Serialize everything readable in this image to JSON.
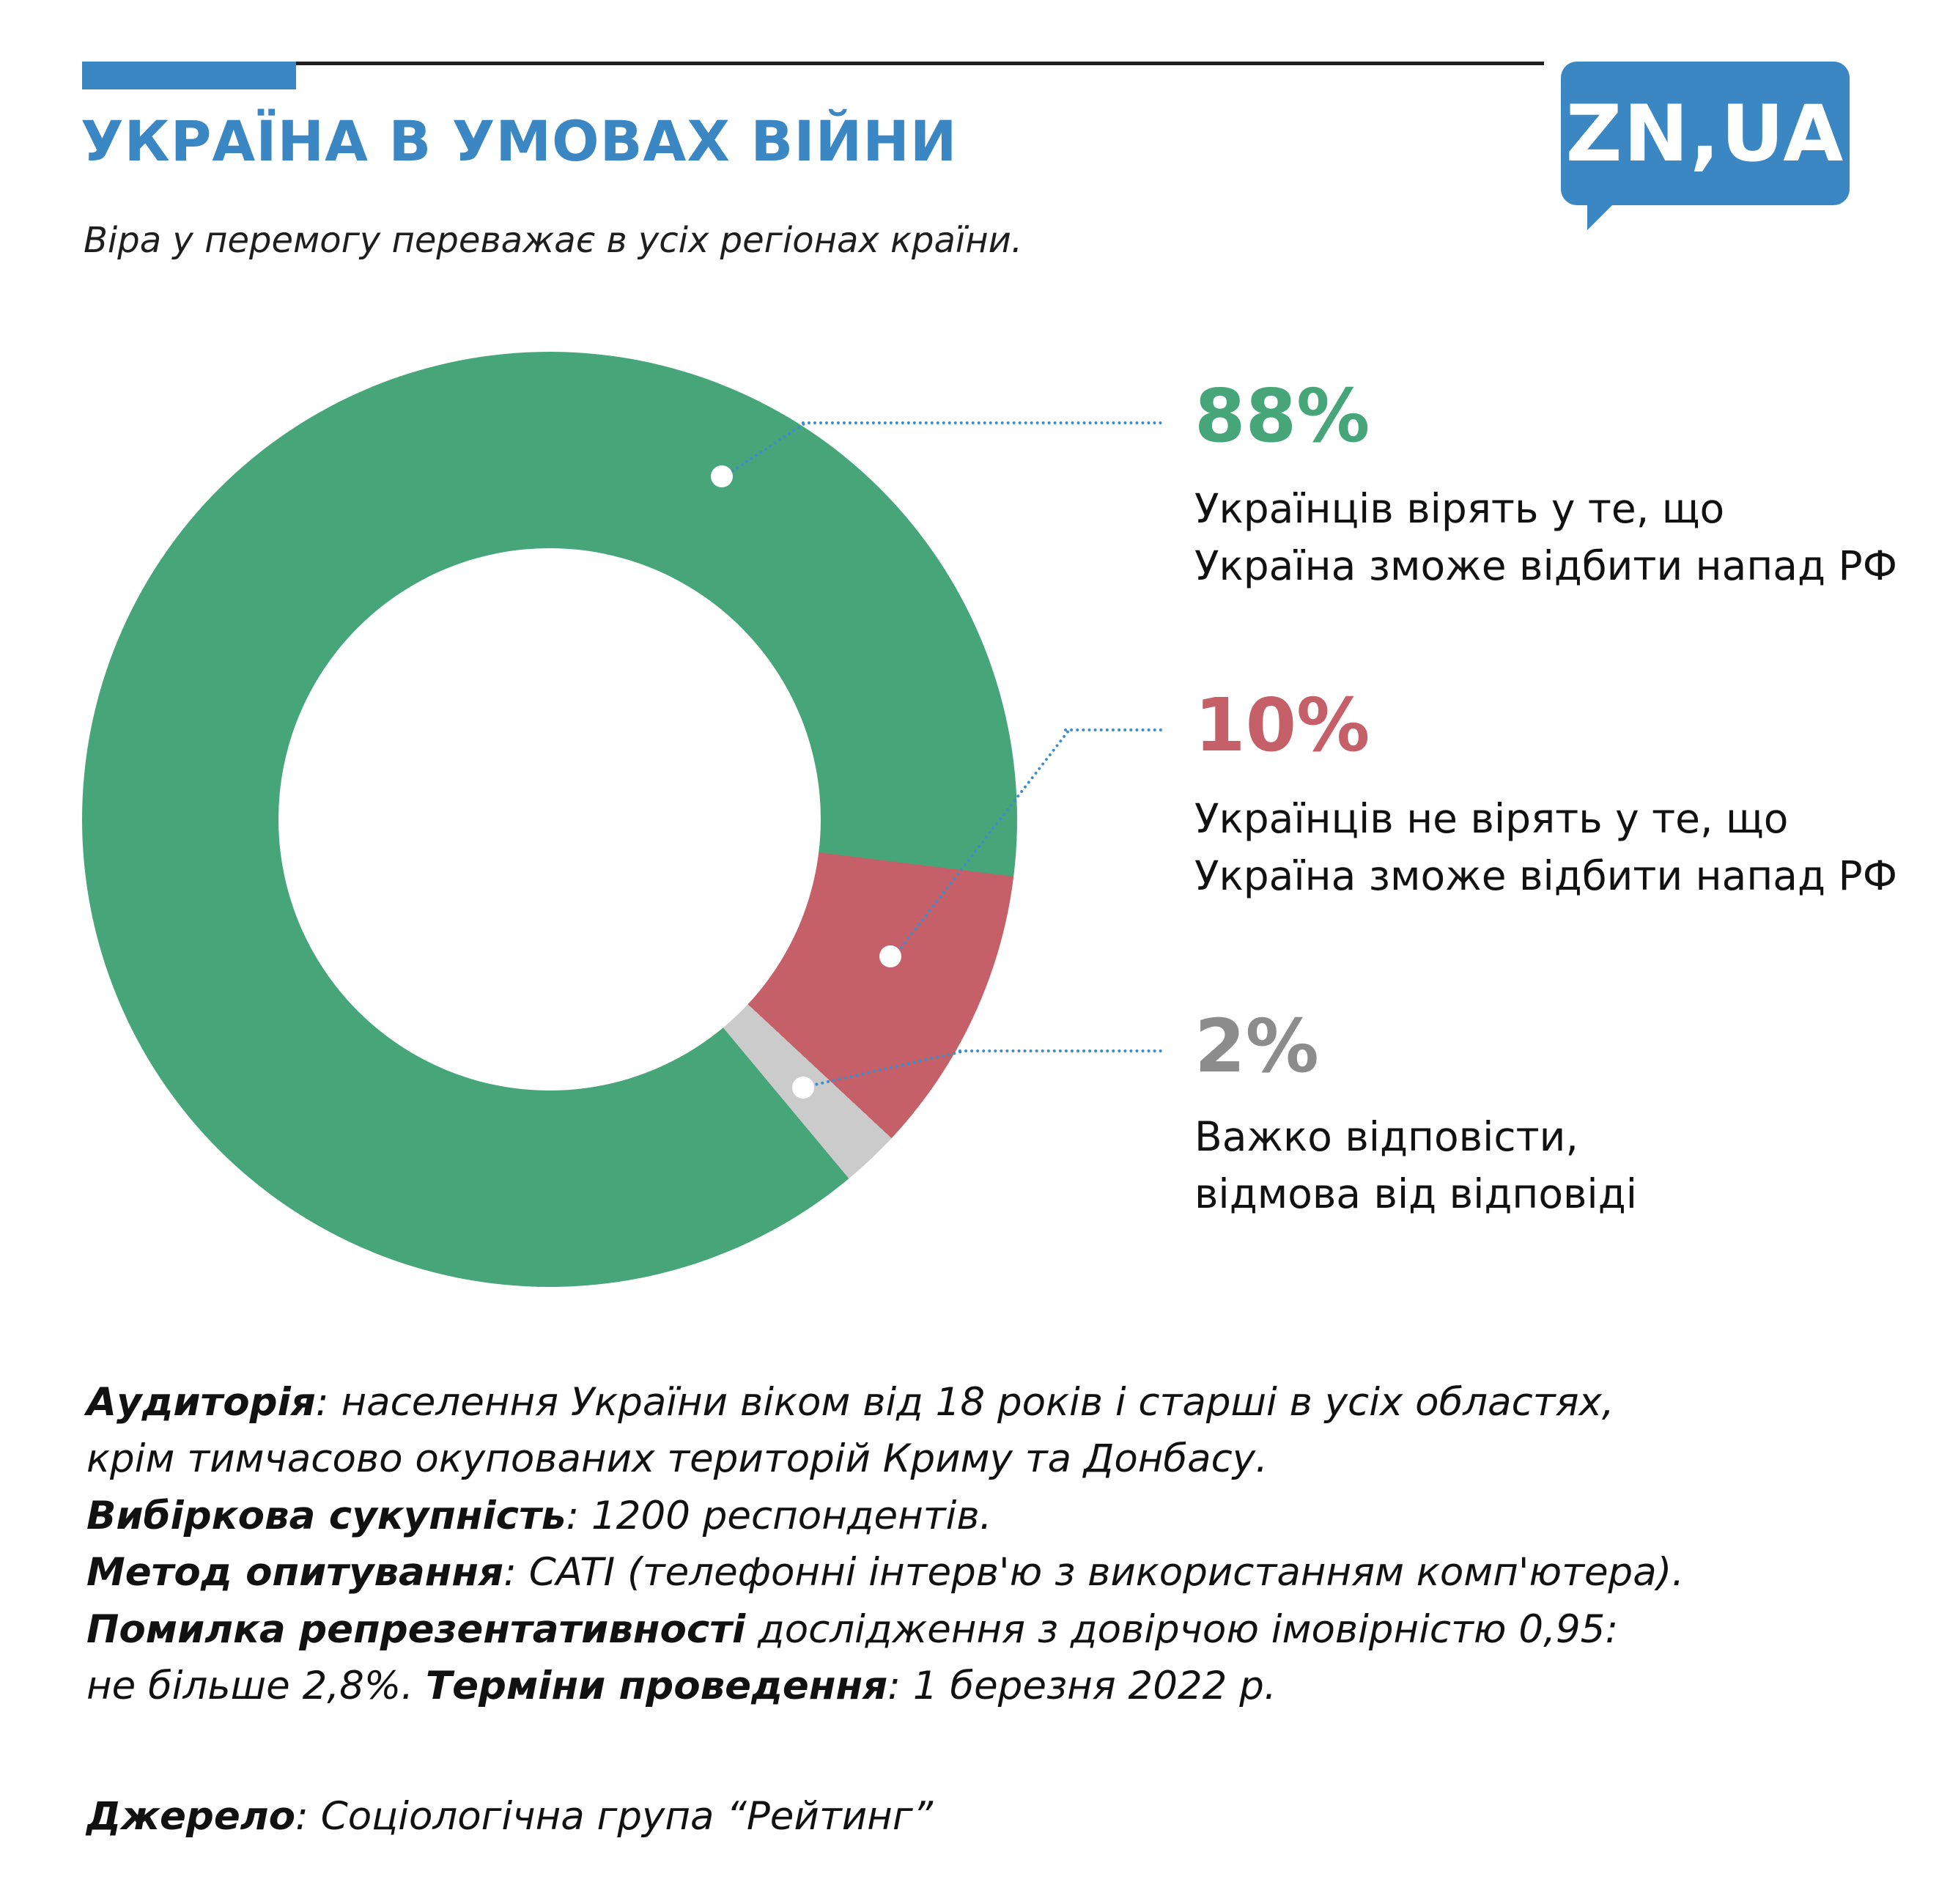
{
  "header": {
    "title": "УКРАЇНА В УМОВАХ ВІЙНИ",
    "subtitle": "Віра у перемогу переважає в усіх регіонах країни.",
    "logo": "ZN,UA"
  },
  "colors": {
    "accent_blue": "#3b87c3",
    "leader_blue": "#3f8dc9",
    "green": "#46a679",
    "red": "#c55f68",
    "gray_slice": "#cbcbcb",
    "gray_text": "#8c8c8c",
    "text_dark": "#1a1a1a"
  },
  "chart_data": {
    "type": "pie",
    "donut": true,
    "title": "УКРАЇНА В УМОВАХ ВІЙНИ",
    "subtitle": "Віра у перемогу переважає в усіх регіонах країни.",
    "unit": "%",
    "start_angle_deg": 140.2,
    "legend_position": "right",
    "slices": [
      {
        "label": "Українців вірять у те, що Україна зможе відбити напад РФ",
        "value": 88,
        "color": "#46a679"
      },
      {
        "label": "Українців не вірять у те, що Україна зможе відбити напад РФ",
        "value": 10,
        "color": "#c55f68"
      },
      {
        "label": "Важко відповісти, відмова від відповіді",
        "value": 2,
        "color": "#cbcbcb"
      }
    ]
  },
  "callouts": [
    {
      "pct": "88%",
      "desc": "Українців вірять у те, що\nУкраїна зможе відбити напад РФ",
      "color": "#46a679"
    },
    {
      "pct": "10%",
      "desc": "Українців не вірять у те, що\nУкраїна зможе відбити напад РФ",
      "color": "#c55f68"
    },
    {
      "pct": "2%",
      "desc": "Важко відповісти,\nвідмова від відповіді",
      "color": "#8c8c8c"
    }
  ],
  "methodology": {
    "line1_bold": "Аудиторія",
    "line1_rest": ": населення України віком від 18 років і старші в усіх областях,",
    "line2": "крім тимчасово окупованих територій Криму та Донбасу.",
    "line3_bold": "Вибіркова сукупність",
    "line3_rest": ": 1200 респондентів.",
    "line4_bold": "Метод опитування",
    "line4_rest": ": CATI (телефонні інтерв'ю з використанням комп'ютера).",
    "line5_bold": "Помилка репрезентативності",
    "line5_rest": " дослідження з довірчою імовірністю 0,95:",
    "line6_pre": "не більше 2,8%. ",
    "line6_bold": "Терміни проведення",
    "line6_rest": ": 1 березня 2022 р."
  },
  "source": {
    "label": "Джерело",
    "rest": ": Соціологічна група “Рейтинг”"
  }
}
